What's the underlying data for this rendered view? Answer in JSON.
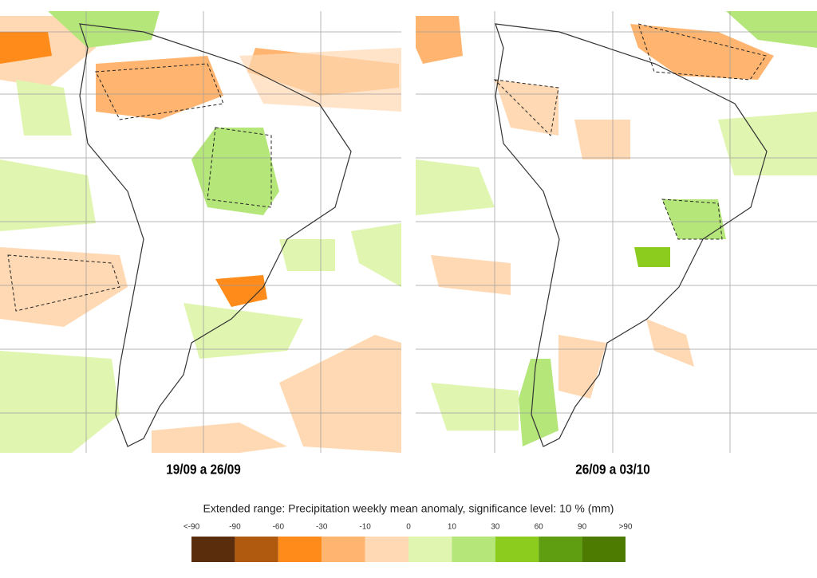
{
  "panels": [
    {
      "caption": "19/09 a 26/09"
    },
    {
      "caption": "26/09 a 03/10"
    }
  ],
  "legend": {
    "title": "Extended range: Precipitation weekly mean anomaly, significance level: 10 % (mm)",
    "labels": [
      "<-90",
      "-90",
      "-60",
      "-30",
      "-10",
      "0",
      "10",
      "30",
      "60",
      "90",
      ">90"
    ],
    "colors": [
      "#5a2d0c",
      "#b05a10",
      "#ff8c1a",
      "#ffb570",
      "#ffd9b3",
      "#dff5b0",
      "#b5e67a",
      "#8ccc1f",
      "#5f9e10",
      "#4d7a00"
    ]
  }
}
